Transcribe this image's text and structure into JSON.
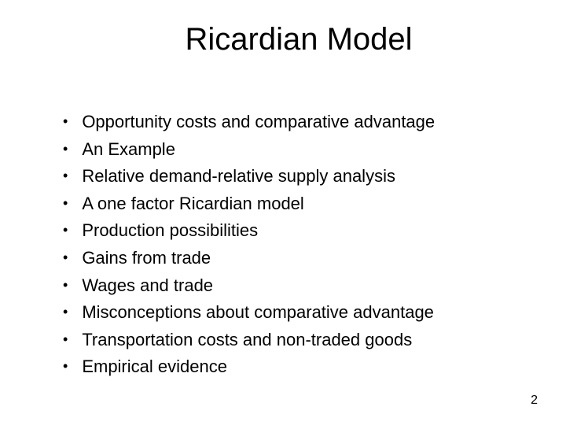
{
  "slide": {
    "title": "Ricardian Model",
    "bullets": [
      "Opportunity costs and comparative advantage",
      "An Example",
      "Relative demand-relative supply analysis",
      "A one factor Ricardian model",
      "Production possibilities",
      "Gains from trade",
      "Wages and trade",
      "Misconceptions about comparative advantage",
      "Transportation costs and non-traded goods",
      "Empirical evidence"
    ],
    "page_number": "2",
    "bullet_marker": "•"
  },
  "styling": {
    "background_color": "#ffffff",
    "text_color": "#000000",
    "title_fontsize": 40,
    "body_fontsize": 22,
    "page_number_fontsize": 16,
    "font_family": "Arial"
  }
}
